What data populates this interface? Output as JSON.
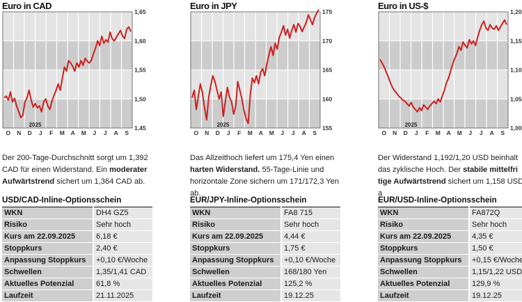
{
  "panels": [
    {
      "chart_title": "Euro in CAD",
      "y_ticks": [
        "1,65",
        "1,60",
        "1,55",
        "1,50",
        "1,45"
      ],
      "x_ticks": [
        "O",
        "N",
        "D",
        "J",
        "F",
        "M",
        "A",
        "M",
        "J",
        "J",
        "A",
        "S"
      ],
      "year_label": "2025",
      "desc_html": "Der 200-Tage-Durchschnitt sorgt um 1,392 CAD für einen Widerstand. Ein <b>moderater Aufwärtstrend</b> sichert um 1,364 CAD ab.",
      "option_title": "USD/CAD-Inline-Optionsschein",
      "rows": [
        {
          "k": "WKN",
          "v": "DH4 GZ5"
        },
        {
          "k": "Risiko",
          "v": "Sehr hoch"
        },
        {
          "k": "Kurs am 22.09.2025",
          "v": "6,18 €"
        },
        {
          "k": "Stoppkurs",
          "v": "2,40 €"
        },
        {
          "k": "Anpassung Stoppkurs",
          "v": "+0,10 €/Woche"
        },
        {
          "k": "Schwellen",
          "v": "1,35/1,41 CAD"
        },
        {
          "k": "Aktuelles Potenzial",
          "v": "61,8 %"
        },
        {
          "k": "Laufzeit",
          "v": "21.11.2025"
        }
      ],
      "chart_data": {
        "type": "line",
        "title": "Euro in CAD",
        "ylim": [
          1.45,
          1.65
        ],
        "series": [
          {
            "values": [
              1.502,
              1.505,
              1.498,
              1.512,
              1.495,
              1.501,
              1.488,
              1.478,
              1.468,
              1.472,
              1.495,
              1.502,
              1.515,
              1.498,
              1.486,
              1.492,
              1.485,
              1.488,
              1.478,
              1.495,
              1.5,
              1.488,
              1.482,
              1.496,
              1.506,
              1.515,
              1.526,
              1.515,
              1.535,
              1.555,
              1.548,
              1.566,
              1.562,
              1.556,
              1.548,
              1.562,
              1.555,
              1.566,
              1.558,
              1.57,
              1.565,
              1.562,
              1.567,
              1.578,
              1.588,
              1.6,
              1.592,
              1.608,
              1.596,
              1.602,
              1.598,
              1.615,
              1.604,
              1.6,
              1.606,
              1.612,
              1.618,
              1.608,
              1.604,
              1.62,
              1.624,
              1.616
            ]
          }
        ]
      }
    },
    {
      "chart_title": "Euro in JPY",
      "y_ticks": [
        "175",
        "170",
        "165",
        "160",
        "155"
      ],
      "x_ticks": [
        "O",
        "N",
        "D",
        "J",
        "F",
        "M",
        "A",
        "M",
        "J",
        "J",
        "A",
        "S"
      ],
      "year_label": "2025",
      "desc_html": "Das Allzeithoch liefert um 175,4 Yen einen <b>harten Widerstand.</b> 55-Tage-Linie und horizontale Zone sichern um 171/172,3 Yen ab.",
      "option_title": "EUR/JPY-Inline-Optionsschein",
      "rows": [
        {
          "k": "WKN",
          "v": "FA8 715"
        },
        {
          "k": "Risiko",
          "v": "Sehr hoch"
        },
        {
          "k": "Kurs am 22.09.2025",
          "v": "4,44 €"
        },
        {
          "k": "Stoppkurs",
          "v": "1,75 €"
        },
        {
          "k": "Anpassung Stoppkurs",
          "v": "+0,10 €/Woche"
        },
        {
          "k": "Schwellen",
          "v": "168/180 Yen"
        },
        {
          "k": "Aktuelles Potenzial",
          "v": "125,2 %"
        },
        {
          "k": "Laufzeit",
          "v": "19.12.25"
        }
      ],
      "chart_data": {
        "type": "line",
        "title": "Euro in JPY",
        "ylim": [
          155,
          175
        ],
        "series": [
          {
            "values": [
              160.2,
              161.5,
              158.2,
              160.5,
              162.6,
              161.0,
              158.5,
              156.4,
              160.3,
              162.3,
              164.0,
              163.0,
              161.5,
              160.0,
              161.2,
              157.0,
              159.5,
              162.0,
              160.3,
              159.5,
              157.4,
              158.8,
              163.0,
              161.5,
              160.0,
              158.0,
              156.6,
              155.8,
              160.5,
              163.6,
              162.8,
              164.0,
              162.6,
              164.6,
              165.2,
              164.0,
              166.0,
              167.6,
              169.0,
              167.5,
              169.6,
              168.6,
              170.6,
              171.5,
              172.6,
              171.0,
              172.0,
              170.5,
              171.8,
              172.8,
              171.5,
              173.0,
              172.5,
              171.6,
              172.4,
              173.2,
              174.5,
              173.6,
              172.8,
              174.0,
              174.8,
              175.4
            ]
          }
        ]
      }
    },
    {
      "chart_title": "Euro in US-$",
      "y_ticks": [
        "1,20",
        "1,15",
        "1,10",
        "1,05",
        "1,00"
      ],
      "x_ticks": [
        "O",
        "N",
        "D",
        "J",
        "F",
        "M",
        "A",
        "M",
        "J",
        "J",
        "A",
        "S"
      ],
      "year_label": "2025",
      "desc_html": "Der Widerstand 1,192/1,20 USD beinhalt das zyklische Hoch. Der <b>stabile mittelfri tige Aufwärtstrend</b> sichert um 1,158 USD a",
      "option_title": "EUR/USD-Inline-Optionsschein",
      "rows": [
        {
          "k": "WKN",
          "v": "FA872Q"
        },
        {
          "k": "Risiko",
          "v": "Sehr hoch"
        },
        {
          "k": "Kurs am 22.09.2025",
          "v": "4,35 €"
        },
        {
          "k": "Stoppkurs",
          "v": "1,50 €"
        },
        {
          "k": "Anpassung Stoppkurs",
          "v": "+0,15 €/Woche"
        },
        {
          "k": "Schwellen",
          "v": "1,15/1,22 USD"
        },
        {
          "k": "Aktuelles Potenzial",
          "v": "129,9 %"
        },
        {
          "k": "Laufzeit",
          "v": "19.12.25"
        }
      ],
      "chart_data": {
        "type": "line",
        "title": "Euro in US-$",
        "ylim": [
          1.0,
          1.2
        ],
        "series": [
          {
            "values": [
              1.118,
              1.112,
              1.105,
              1.096,
              1.088,
              1.078,
              1.07,
              1.064,
              1.06,
              1.055,
              1.052,
              1.048,
              1.046,
              1.042,
              1.038,
              1.044,
              1.036,
              1.032,
              1.028,
              1.035,
              1.03,
              1.04,
              1.036,
              1.032,
              1.038,
              1.042,
              1.046,
              1.042,
              1.05,
              1.045,
              1.055,
              1.065,
              1.078,
              1.086,
              1.098,
              1.11,
              1.12,
              1.128,
              1.14,
              1.134,
              1.148,
              1.142,
              1.138,
              1.152,
              1.145,
              1.15,
              1.142,
              1.156,
              1.168,
              1.178,
              1.184,
              1.172,
              1.168,
              1.178,
              1.172,
              1.17,
              1.176,
              1.168,
              1.174,
              1.18,
              1.186,
              1.178
            ]
          }
        ]
      }
    }
  ],
  "colors": {
    "line": "#cc1f1f",
    "plot_bg": "#e4e4e4",
    "band": "#cccccc",
    "text": "#111111"
  }
}
